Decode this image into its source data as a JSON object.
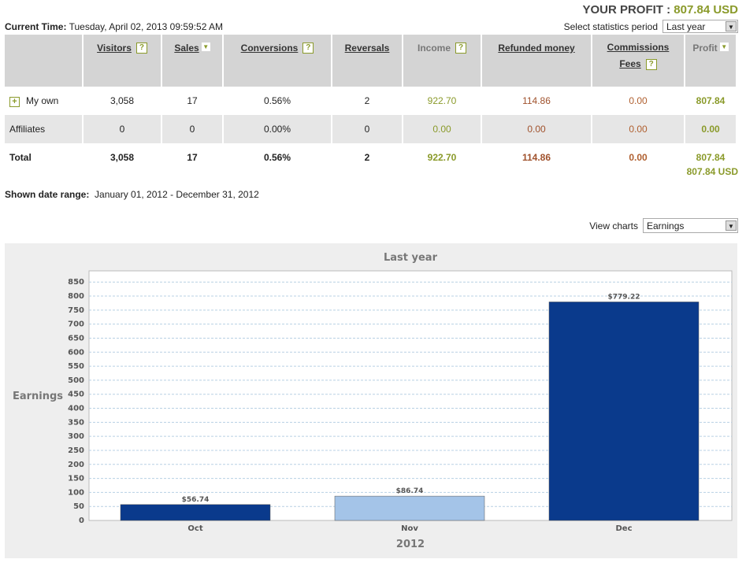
{
  "header": {
    "profit_label": "YOUR PROFIT :",
    "profit_value": "807.84 USD",
    "time_label": "Current Time:",
    "time_value": "Tuesday, April 02, 2013 09:59:52 AM",
    "period_label": "Select statistics period",
    "period_value": "Last year"
  },
  "table": {
    "columns": [
      "Visitors",
      "Sales",
      "Conversions",
      "Reversals",
      "Income",
      "Refunded money",
      "Commissions",
      "Fees",
      "Profit"
    ],
    "rows": [
      {
        "name": "My own",
        "visitors": "3,058",
        "sales": "17",
        "conversions": "0.56%",
        "reversals": "2",
        "income": "922.70",
        "refunded": "114.86",
        "commissions": "0.00",
        "profit": "807.84"
      },
      {
        "name": "Affiliates",
        "visitors": "0",
        "sales": "0",
        "conversions": "0.00%",
        "reversals": "0",
        "income": "0.00",
        "refunded": "0.00",
        "commissions": "0.00",
        "profit": "0.00"
      },
      {
        "name": "Total",
        "visitors": "3,058",
        "sales": "17",
        "conversions": "0.56%",
        "reversals": "2",
        "income": "922.70",
        "refunded": "114.86",
        "commissions": "0.00",
        "profit": "807.84"
      }
    ],
    "total_usd": "807.84 USD"
  },
  "range": {
    "label": "Shown date range:",
    "value": "January 01, 2012 - December 31, 2012"
  },
  "charts": {
    "label": "View charts",
    "value": "Earnings"
  },
  "chart_data": {
    "type": "bar",
    "title": "Last year",
    "xlabel": "2012",
    "ylabel": "Earnings",
    "categories": [
      "Oct",
      "Nov",
      "Dec"
    ],
    "values": [
      56.74,
      86.74,
      779.22
    ],
    "data_labels": [
      "$56.74",
      "$86.74",
      "$779.22"
    ],
    "colors": [
      "#0a3a8c",
      "#a4c4e8",
      "#0a3a8c"
    ],
    "ylim": [
      0,
      890
    ],
    "yticks": [
      0,
      50,
      100,
      150,
      200,
      250,
      300,
      350,
      400,
      450,
      500,
      550,
      600,
      650,
      700,
      750,
      800,
      850
    ],
    "grid": true
  }
}
